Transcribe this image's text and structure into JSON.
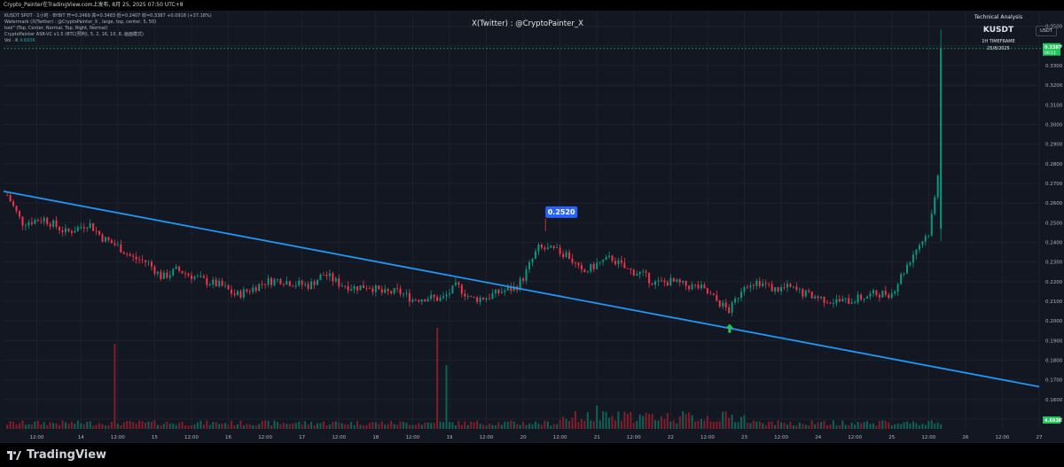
{
  "topbar": {
    "text": "Crypto_Painter在TradingView.com上发布, 8月 25, 2025 07:50 UTC+8"
  },
  "legend": {
    "line1": "KUSDT SPOT · 1小时 · BYBIT  开=0.2469  高=0.3483  低=0.2407  收=0.3387  +0.0918 (+37.18%)",
    "line2": "Watermark (X(Twitter) : @CryptoPainter_X , large, top, center, 5, 50)",
    "line3": "tool\" (Top, Center, Normal, Top, Right, Normal)",
    "line4": "CryptoPainter ASR-VC v1.5 (BTC(预判), 5, 2, 16, 10, 8, 画面模式)",
    "line5_label": "Vol · K",
    "line5_value": "4.693K"
  },
  "watermark": "X(Twitter) : @CryptoPainter_X",
  "ta_box": {
    "line1": "Technical Analysis",
    "line2": "KUSDT",
    "line3": "1H TIMEFRAME",
    "line4": "25/8/2025"
  },
  "currency_label": "USDT",
  "brand": "TradingView",
  "colors": {
    "background": "#131722",
    "up": "#089981",
    "down": "#f23645",
    "trendline": "#2196f3",
    "last_price": "#22c55e",
    "callout": "#2962ff"
  },
  "chart_data": {
    "type": "candlestick",
    "symbol": "KUSDT",
    "exchange": "BYBIT",
    "timeframe": "1H",
    "y_ticks": [
      "0.3500",
      "0.3400",
      "0.3300",
      "0.3200",
      "0.3100",
      "0.3000",
      "0.2900",
      "0.2800",
      "0.2700",
      "0.2600",
      "0.2500",
      "0.2400",
      "0.2300",
      "0.2200",
      "0.2100",
      "0.2000",
      "0.1900",
      "0.1800",
      "0.1700",
      "0.1600",
      "0.1500"
    ],
    "y_range": [
      0.145,
      0.358
    ],
    "x_labels": [
      {
        "t": 0.4,
        "label": "12:00"
      },
      {
        "t": 1.0,
        "label": "14"
      },
      {
        "t": 1.5,
        "label": "12:00"
      },
      {
        "t": 2.0,
        "label": "15"
      },
      {
        "t": 2.5,
        "label": "12:00"
      },
      {
        "t": 3.0,
        "label": "16"
      },
      {
        "t": 3.5,
        "label": "12:00"
      },
      {
        "t": 4.0,
        "label": "17"
      },
      {
        "t": 4.5,
        "label": "12:00"
      },
      {
        "t": 5.0,
        "label": "18"
      },
      {
        "t": 5.5,
        "label": "12:00"
      },
      {
        "t": 6.0,
        "label": "19"
      },
      {
        "t": 6.5,
        "label": "12:00"
      },
      {
        "t": 7.0,
        "label": "20"
      },
      {
        "t": 7.5,
        "label": "12:00"
      },
      {
        "t": 8.0,
        "label": "21"
      },
      {
        "t": 8.5,
        "label": "12:00"
      },
      {
        "t": 9.0,
        "label": "22"
      },
      {
        "t": 9.5,
        "label": "12:00"
      },
      {
        "t": 10.0,
        "label": "23"
      },
      {
        "t": 10.5,
        "label": "12:00"
      },
      {
        "t": 11.0,
        "label": "24"
      },
      {
        "t": 11.5,
        "label": "12:00"
      },
      {
        "t": 12.0,
        "label": "25"
      },
      {
        "t": 12.5,
        "label": "12:00"
      },
      {
        "t": 13.0,
        "label": "26"
      },
      {
        "t": 13.5,
        "label": "12:00"
      },
      {
        "t": 14.0,
        "label": "27"
      }
    ],
    "x_range_days": [
      -0.05,
      14.0
    ],
    "price_points": [
      [
        0.0,
        0.264
      ],
      [
        0.2,
        0.25
      ],
      [
        0.5,
        0.252
      ],
      [
        0.8,
        0.245
      ],
      [
        1.0,
        0.248
      ],
      [
        1.1,
        0.25
      ],
      [
        1.3,
        0.242
      ],
      [
        1.5,
        0.238
      ],
      [
        1.7,
        0.232
      ],
      [
        1.9,
        0.23
      ],
      [
        2.1,
        0.222
      ],
      [
        2.3,
        0.226
      ],
      [
        2.5,
        0.223
      ],
      [
        2.7,
        0.22
      ],
      [
        2.9,
        0.218
      ],
      [
        3.1,
        0.213
      ],
      [
        3.3,
        0.216
      ],
      [
        3.5,
        0.22
      ],
      [
        3.7,
        0.221
      ],
      [
        3.9,
        0.219
      ],
      [
        4.1,
        0.218
      ],
      [
        4.3,
        0.224
      ],
      [
        4.5,
        0.219
      ],
      [
        4.7,
        0.217
      ],
      [
        4.9,
        0.218
      ],
      [
        5.1,
        0.214
      ],
      [
        5.3,
        0.215
      ],
      [
        5.5,
        0.211
      ],
      [
        5.7,
        0.212
      ],
      [
        5.9,
        0.211
      ],
      [
        6.1,
        0.218
      ],
      [
        6.3,
        0.211
      ],
      [
        6.5,
        0.212
      ],
      [
        6.7,
        0.215
      ],
      [
        6.9,
        0.217
      ],
      [
        7.0,
        0.222
      ],
      [
        7.2,
        0.237
      ],
      [
        7.4,
        0.236
      ],
      [
        7.6,
        0.234
      ],
      [
        7.8,
        0.224
      ],
      [
        8.0,
        0.229
      ],
      [
        8.2,
        0.232
      ],
      [
        8.4,
        0.226
      ],
      [
        8.6,
        0.224
      ],
      [
        8.8,
        0.219
      ],
      [
        9.0,
        0.22
      ],
      [
        9.2,
        0.218
      ],
      [
        9.4,
        0.217
      ],
      [
        9.6,
        0.211
      ],
      [
        9.8,
        0.205
      ],
      [
        10.0,
        0.219
      ],
      [
        10.2,
        0.22
      ],
      [
        10.4,
        0.216
      ],
      [
        10.6,
        0.217
      ],
      [
        10.8,
        0.214
      ],
      [
        11.0,
        0.212
      ],
      [
        11.2,
        0.21
      ],
      [
        11.4,
        0.21
      ],
      [
        11.6,
        0.212
      ],
      [
        11.8,
        0.214
      ],
      [
        12.0,
        0.214
      ],
      [
        12.2,
        0.228
      ],
      [
        12.35,
        0.238
      ],
      [
        12.5,
        0.245
      ],
      [
        12.62,
        0.27
      ],
      [
        12.68,
        0.3387
      ]
    ],
    "last_price": {
      "value": 0.3387,
      "label": "0.3387",
      "sublabel": "00:11"
    },
    "high_marker": {
      "value": 0.3483
    },
    "callout": {
      "t": 7.35,
      "value": 0.252,
      "label": "0.2520"
    },
    "buy_arrow": {
      "t": 9.8,
      "value": 0.1985
    },
    "trendline": {
      "start": [
        -0.05,
        0.266
      ],
      "end": [
        14.0,
        0.1665
      ]
    },
    "volume_spikes": [
      [
        1.45,
        0.8
      ],
      [
        5.85,
        0.95
      ],
      [
        5.95,
        0.6
      ],
      [
        7.7,
        0.15
      ],
      [
        8.0,
        0.22
      ]
    ],
    "volume_label": "4.693K"
  }
}
